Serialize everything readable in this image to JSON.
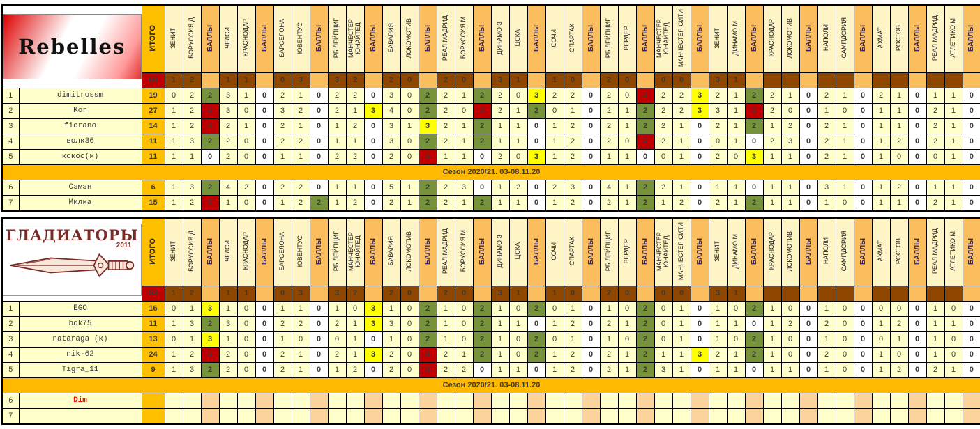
{
  "banner_text": "Сезон 2020/21. 03-08.11.20",
  "labels": {
    "itogo": "ИТОГО",
    "points": "БАЛЛЫ"
  },
  "colors": {
    "accent_orange": "#FFC000",
    "banner_orange": "#FFBA00",
    "points_header_col": "#FBBE5E",
    "score_row_brown": "#8F4700",
    "team_total_red": "#C00000",
    "points_exact_red": "#C00000",
    "points_diff_yellow": "#FFFF00",
    "points_outcome_green": "#76933C",
    "points_zero_blue_text": "#0070C0",
    "cell_pale_yellow": "#FFFFCC",
    "gladiators_dark_red": "#7a2a24"
  },
  "matches": [
    {
      "home": "ЗЕНИТ",
      "away": "БОРУССИЯ Д",
      "score_home": "1",
      "score_away": "2"
    },
    {
      "home": "ЧЕЛСИ",
      "away": "КРАСНОДАР",
      "score_home": "1",
      "score_away": "1"
    },
    {
      "home": "БАРСЕЛОНА",
      "away": "ЮВЕНТУС",
      "score_home": "0",
      "score_away": "3"
    },
    {
      "home": "РБ ЛЕЙПЦИГ",
      "away": "МАНЧЕСТЕР ЮНАЙТЕД",
      "score_home": "3",
      "score_away": "2"
    },
    {
      "home": "БАВАРИЯ",
      "away": "ЛОКОМОТИВ",
      "score_home": "2",
      "score_away": "0"
    },
    {
      "home": "РЕАЛ МАДРИД",
      "away": "БОРУССИЯ М",
      "score_home": "2",
      "score_away": "0"
    },
    {
      "home": "ДИНАМО З",
      "away": "ЦСКА",
      "score_home": "3",
      "score_away": "1"
    },
    {
      "home": "СОЧИ",
      "away": "СПАРТАК",
      "score_home": "1",
      "score_away": "0"
    },
    {
      "home": "РБ ЛЕЙПЦИГ",
      "away": "ВЕРДЕР",
      "score_home": "2",
      "score_away": "0"
    },
    {
      "home": "МАНЧЕСТЕР ЮНАЙТЕД",
      "away": "МАНЧЕСТЕР СИТИ",
      "score_home": "0",
      "score_away": "0"
    },
    {
      "home": "ЗЕНИТ",
      "away": "ДИНАМО М",
      "score_home": "3",
      "score_away": "1"
    },
    {
      "home": "КРАСНОДАР",
      "away": "ЛОКОМОТИВ",
      "score_home": "",
      "score_away": ""
    },
    {
      "home": "НАПОЛИ",
      "away": "САМПДОРИЯ",
      "score_home": "",
      "score_away": ""
    },
    {
      "home": "АХМАТ",
      "away": "РОСТОВ",
      "score_home": "",
      "score_away": ""
    },
    {
      "home": "РЕАЛ МАДРИД",
      "away": "АТЛЕТИКО М",
      "score_home": "",
      "score_away": ""
    }
  ],
  "sections": [
    {
      "team_name": "Rebelles",
      "logo": "rebelles",
      "logo_year": "",
      "total": "60",
      "rows": [
        {
          "num": "1",
          "name": "dimitrossm",
          "total": "19",
          "preds": [
            [
              "0",
              "2",
              "2"
            ],
            [
              "3",
              "1",
              "0"
            ],
            [
              "2",
              "1",
              "0"
            ],
            [
              "2",
              "2",
              "0"
            ],
            [
              "3",
              "0",
              "2"
            ],
            [
              "2",
              "1",
              "2"
            ],
            [
              "2",
              "0",
              "3"
            ],
            [
              "2",
              "2",
              "0"
            ],
            [
              "2",
              "0",
              "5"
            ],
            [
              "2",
              "2",
              "3"
            ],
            [
              "2",
              "1",
              "2"
            ],
            [
              "2",
              "1",
              "0"
            ],
            [
              "2",
              "1",
              "0"
            ],
            [
              "2",
              "1",
              "0"
            ],
            [
              "1",
              "1",
              "0"
            ]
          ]
        },
        {
          "num": "2",
          "name": "Kor",
          "total": "27",
          "preds": [
            [
              "1",
              "2",
              "5"
            ],
            [
              "3",
              "0",
              "0"
            ],
            [
              "3",
              "2",
              "0"
            ],
            [
              "2",
              "1",
              "3"
            ],
            [
              "4",
              "0",
              "2"
            ],
            [
              "2",
              "0",
              "5"
            ],
            [
              "2",
              "1",
              "2"
            ],
            [
              "0",
              "1",
              "0"
            ],
            [
              "2",
              "1",
              "2"
            ],
            [
              "2",
              "2",
              "3"
            ],
            [
              "3",
              "1",
              "5"
            ],
            [
              "2",
              "0",
              "0"
            ],
            [
              "1",
              "0",
              "0"
            ],
            [
              "1",
              "1",
              "0"
            ],
            [
              "2",
              "1",
              "0"
            ]
          ]
        },
        {
          "num": "3",
          "name": "fiorano",
          "total": "14",
          "preds": [
            [
              "1",
              "2",
              "5"
            ],
            [
              "2",
              "1",
              "0"
            ],
            [
              "2",
              "1",
              "0"
            ],
            [
              "1",
              "2",
              "0"
            ],
            [
              "3",
              "1",
              "3"
            ],
            [
              "2",
              "1",
              "2"
            ],
            [
              "1",
              "1",
              "0"
            ],
            [
              "1",
              "2",
              "0"
            ],
            [
              "2",
              "1",
              "2"
            ],
            [
              "2",
              "1",
              "0"
            ],
            [
              "2",
              "1",
              "2"
            ],
            [
              "1",
              "2",
              "0"
            ],
            [
              "2",
              "1",
              "0"
            ],
            [
              "1",
              "1",
              "0"
            ],
            [
              "2",
              "1",
              "0"
            ]
          ]
        },
        {
          "num": "4",
          "name": "волк36",
          "total": "11",
          "preds": [
            [
              "1",
              "3",
              "2"
            ],
            [
              "2",
              "0",
              "0"
            ],
            [
              "2",
              "2",
              "0"
            ],
            [
              "1",
              "1",
              "0"
            ],
            [
              "3",
              "0",
              "2"
            ],
            [
              "2",
              "1",
              "2"
            ],
            [
              "1",
              "1",
              "0"
            ],
            [
              "1",
              "2",
              "0"
            ],
            [
              "2",
              "0",
              "5"
            ],
            [
              "2",
              "1",
              "0"
            ],
            [
              "0",
              "1",
              "0"
            ],
            [
              "2",
              "3",
              "0"
            ],
            [
              "2",
              "1",
              "0"
            ],
            [
              "1",
              "2",
              "0"
            ],
            [
              "2",
              "1",
              "0"
            ]
          ]
        },
        {
          "num": "5",
          "name": "кокос(к)",
          "total": "11",
          "preds": [
            [
              "1",
              "1",
              "0"
            ],
            [
              "2",
              "0",
              "0"
            ],
            [
              "1",
              "1",
              "0"
            ],
            [
              "2",
              "2",
              "0"
            ],
            [
              "2",
              "0",
              "5"
            ],
            [
              "1",
              "1",
              "0"
            ],
            [
              "2",
              "0",
              "3"
            ],
            [
              "1",
              "2",
              "0"
            ],
            [
              "1",
              "1",
              "0"
            ],
            [
              "0",
              "1",
              "0"
            ],
            [
              "2",
              "0",
              "3"
            ],
            [
              "1",
              "1",
              "0"
            ],
            [
              "2",
              "1",
              "0"
            ],
            [
              "1",
              "0",
              "0"
            ],
            [
              "0",
              "1",
              "0"
            ]
          ]
        },
        {
          "num": "6",
          "name": "Сэмэн",
          "total": "6",
          "preds": [
            [
              "1",
              "3",
              "2"
            ],
            [
              "4",
              "2",
              "0"
            ],
            [
              "2",
              "2",
              "0"
            ],
            [
              "1",
              "1",
              "0"
            ],
            [
              "5",
              "1",
              "2"
            ],
            [
              "2",
              "3",
              "0"
            ],
            [
              "1",
              "2",
              "0"
            ],
            [
              "2",
              "3",
              "0"
            ],
            [
              "4",
              "1",
              "2"
            ],
            [
              "2",
              "1",
              "0"
            ],
            [
              "1",
              "1",
              "0"
            ],
            [
              "1",
              "1",
              "0"
            ],
            [
              "3",
              "1",
              "0"
            ],
            [
              "1",
              "2",
              "0"
            ],
            [
              "1",
              "1",
              "0"
            ]
          ]
        },
        {
          "num": "7",
          "name": "Милка",
          "total": "15",
          "preds": [
            [
              "1",
              "2",
              "5"
            ],
            [
              "1",
              "0",
              "0"
            ],
            [
              "1",
              "2",
              "2"
            ],
            [
              "1",
              "2",
              "0"
            ],
            [
              "2",
              "1",
              "2"
            ],
            [
              "2",
              "1",
              "2"
            ],
            [
              "1",
              "1",
              "0"
            ],
            [
              "1",
              "2",
              "0"
            ],
            [
              "2",
              "1",
              "2"
            ],
            [
              "1",
              "2",
              "0"
            ],
            [
              "2",
              "1",
              "2"
            ],
            [
              "1",
              "1",
              "0"
            ],
            [
              "1",
              "0",
              "0"
            ],
            [
              "1",
              "1",
              "0"
            ],
            [
              "2",
              "1",
              "0"
            ]
          ]
        }
      ]
    },
    {
      "team_name": "ГЛАДИАТОРЫ",
      "logo": "gladiators",
      "logo_year": "2011",
      "total": "53",
      "rows": [
        {
          "num": "1",
          "name": "EGO",
          "total": "16",
          "preds": [
            [
              "0",
              "1",
              "3"
            ],
            [
              "1",
              "0",
              "0"
            ],
            [
              "1",
              "1",
              "0"
            ],
            [
              "1",
              "0",
              "3"
            ],
            [
              "1",
              "0",
              "2"
            ],
            [
              "1",
              "0",
              "2"
            ],
            [
              "1",
              "0",
              "2"
            ],
            [
              "0",
              "1",
              "0"
            ],
            [
              "1",
              "0",
              "2"
            ],
            [
              "0",
              "1",
              "0"
            ],
            [
              "1",
              "0",
              "2"
            ],
            [
              "1",
              "0",
              "0"
            ],
            [
              "1",
              "0",
              "0"
            ],
            [
              "0",
              "0",
              "0"
            ],
            [
              "1",
              "0",
              "0"
            ]
          ]
        },
        {
          "num": "2",
          "name": "bok75",
          "total": "11",
          "preds": [
            [
              "1",
              "3",
              "2"
            ],
            [
              "3",
              "0",
              "0"
            ],
            [
              "2",
              "2",
              "0"
            ],
            [
              "2",
              "1",
              "3"
            ],
            [
              "3",
              "0",
              "2"
            ],
            [
              "1",
              "0",
              "2"
            ],
            [
              "1",
              "1",
              "0"
            ],
            [
              "1",
              "2",
              "0"
            ],
            [
              "2",
              "1",
              "2"
            ],
            [
              "0",
              "1",
              "0"
            ],
            [
              "1",
              "1",
              "0"
            ],
            [
              "1",
              "2",
              "0"
            ],
            [
              "2",
              "0",
              "0"
            ],
            [
              "1",
              "2",
              "0"
            ],
            [
              "1",
              "1",
              "0"
            ]
          ]
        },
        {
          "num": "3",
          "name": "nataraga (к)",
          "total": "13",
          "preds": [
            [
              "0",
              "1",
              "3"
            ],
            [
              "1",
              "0",
              "0"
            ],
            [
              "1",
              "0",
              "0"
            ],
            [
              "0",
              "1",
              "0"
            ],
            [
              "1",
              "0",
              "2"
            ],
            [
              "1",
              "0",
              "2"
            ],
            [
              "1",
              "0",
              "2"
            ],
            [
              "0",
              "1",
              "0"
            ],
            [
              "1",
              "0",
              "2"
            ],
            [
              "0",
              "1",
              "0"
            ],
            [
              "1",
              "0",
              "2"
            ],
            [
              "1",
              "0",
              "0"
            ],
            [
              "1",
              "0",
              "0"
            ],
            [
              "0",
              "1",
              "0"
            ],
            [
              "1",
              "0",
              "0"
            ]
          ]
        },
        {
          "num": "4",
          "name": "nik-62",
          "total": "24",
          "preds": [
            [
              "1",
              "2",
              "5"
            ],
            [
              "2",
              "0",
              "0"
            ],
            [
              "2",
              "1",
              "0"
            ],
            [
              "2",
              "1",
              "3"
            ],
            [
              "2",
              "0",
              "5"
            ],
            [
              "2",
              "1",
              "2"
            ],
            [
              "1",
              "0",
              "2"
            ],
            [
              "1",
              "2",
              "0"
            ],
            [
              "2",
              "1",
              "2"
            ],
            [
              "1",
              "1",
              "3"
            ],
            [
              "2",
              "1",
              "2"
            ],
            [
              "1",
              "0",
              "0"
            ],
            [
              "2",
              "0",
              "0"
            ],
            [
              "1",
              "0",
              "0"
            ],
            [
              "1",
              "0",
              "0"
            ]
          ]
        },
        {
          "num": "5",
          "name": "Tigra_11",
          "total": "9",
          "preds": [
            [
              "1",
              "3",
              "2"
            ],
            [
              "2",
              "0",
              "0"
            ],
            [
              "2",
              "1",
              "0"
            ],
            [
              "1",
              "2",
              "0"
            ],
            [
              "2",
              "0",
              "5"
            ],
            [
              "2",
              "2",
              "0"
            ],
            [
              "1",
              "1",
              "0"
            ],
            [
              "1",
              "2",
              "0"
            ],
            [
              "2",
              "1",
              "2"
            ],
            [
              "3",
              "1",
              "0"
            ],
            [
              "1",
              "1",
              "0"
            ],
            [
              "1",
              "1",
              "0"
            ],
            [
              "1",
              "0",
              "0"
            ],
            [
              "1",
              "2",
              "0"
            ],
            [
              "2",
              "1",
              "0"
            ]
          ]
        },
        {
          "num": "6",
          "name": "Dim",
          "total": "",
          "highlight": "red",
          "preds": []
        },
        {
          "num": "7",
          "name": "",
          "total": "",
          "preds": []
        }
      ]
    }
  ]
}
